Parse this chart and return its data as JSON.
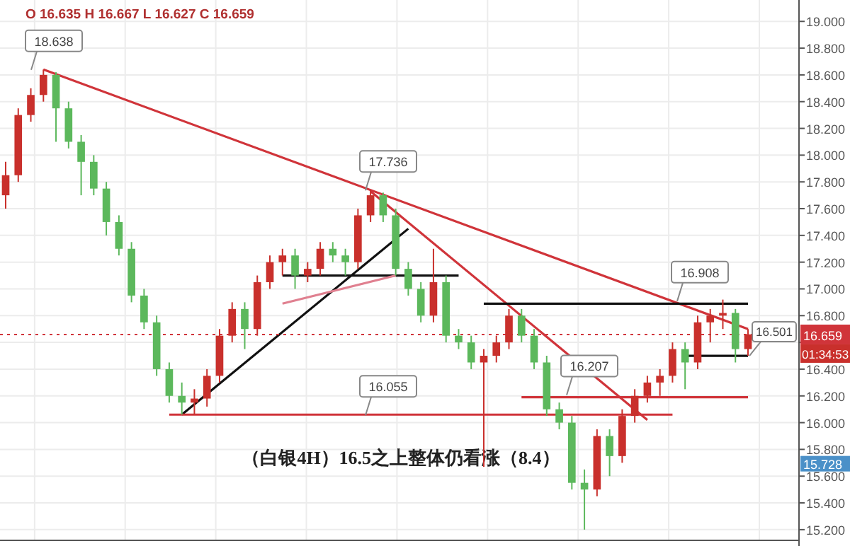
{
  "chart_data": {
    "type": "candlestick",
    "categories": [
      null,
      null,
      null,
      null,
      null,
      null,
      null,
      null,
      null,
      null,
      null,
      null,
      null,
      null,
      null,
      null,
      null,
      null,
      null,
      null,
      null,
      null,
      null,
      null,
      null,
      null,
      null,
      null,
      null,
      null,
      null,
      null,
      null,
      null,
      null,
      null,
      null,
      null,
      null,
      null,
      null,
      null,
      null,
      null,
      null,
      null,
      null,
      null,
      null,
      null,
      null,
      null,
      null,
      null,
      null,
      null,
      null,
      null,
      null,
      null
    ],
    "ohlc": [
      [
        17.7,
        17.95,
        17.6,
        17.85
      ],
      [
        17.85,
        18.35,
        17.8,
        18.3
      ],
      [
        18.3,
        18.5,
        18.25,
        18.45
      ],
      [
        18.45,
        18.64,
        18.4,
        18.6
      ],
      [
        18.6,
        18.62,
        18.1,
        18.35
      ],
      [
        18.35,
        18.4,
        18.05,
        18.1
      ],
      [
        18.1,
        18.15,
        17.7,
        17.95
      ],
      [
        17.95,
        18.0,
        17.7,
        17.75
      ],
      [
        17.75,
        17.8,
        17.4,
        17.5
      ],
      [
        17.5,
        17.55,
        17.25,
        17.3
      ],
      [
        17.3,
        17.35,
        16.9,
        16.95
      ],
      [
        16.95,
        17.0,
        16.7,
        16.75
      ],
      [
        16.75,
        16.8,
        16.35,
        16.4
      ],
      [
        16.4,
        16.45,
        16.15,
        16.2
      ],
      [
        16.2,
        16.3,
        16.06,
        16.15
      ],
      [
        16.15,
        16.25,
        16.06,
        16.18
      ],
      [
        16.18,
        16.4,
        16.12,
        16.35
      ],
      [
        16.35,
        16.7,
        16.3,
        16.65
      ],
      [
        16.65,
        16.9,
        16.6,
        16.85
      ],
      [
        16.85,
        16.9,
        16.55,
        16.7
      ],
      [
        16.7,
        17.1,
        16.65,
        17.05
      ],
      [
        17.05,
        17.25,
        17.0,
        17.2
      ],
      [
        17.2,
        17.3,
        17.1,
        17.25
      ],
      [
        17.25,
        17.3,
        17.0,
        17.1
      ],
      [
        17.1,
        17.2,
        17.05,
        17.15
      ],
      [
        17.15,
        17.35,
        17.1,
        17.3
      ],
      [
        17.3,
        17.35,
        17.2,
        17.25
      ],
      [
        17.25,
        17.3,
        17.1,
        17.2
      ],
      [
        17.2,
        17.6,
        17.15,
        17.55
      ],
      [
        17.55,
        17.74,
        17.5,
        17.7
      ],
      [
        17.7,
        17.72,
        17.5,
        17.55
      ],
      [
        17.55,
        17.6,
        17.1,
        17.15
      ],
      [
        17.15,
        17.2,
        16.95,
        17.0
      ],
      [
        17.0,
        17.05,
        16.75,
        16.8
      ],
      [
        16.8,
        17.3,
        16.75,
        17.05
      ],
      [
        17.05,
        17.1,
        16.6,
        16.65
      ],
      [
        16.65,
        16.7,
        16.55,
        16.6
      ],
      [
        16.6,
        16.65,
        16.4,
        16.45
      ],
      [
        16.45,
        16.55,
        15.67,
        16.5
      ],
      [
        16.5,
        16.65,
        16.45,
        16.6
      ],
      [
        16.6,
        16.85,
        16.55,
        16.8
      ],
      [
        16.8,
        16.85,
        16.6,
        16.65
      ],
      [
        16.65,
        16.7,
        16.4,
        16.45
      ],
      [
        16.45,
        16.5,
        16.05,
        16.1
      ],
      [
        16.1,
        16.15,
        15.95,
        16.0
      ],
      [
        16.0,
        16.05,
        15.5,
        15.55
      ],
      [
        15.55,
        15.65,
        15.2,
        15.5
      ],
      [
        15.5,
        15.95,
        15.45,
        15.9
      ],
      [
        15.9,
        15.95,
        15.6,
        15.75
      ],
      [
        15.75,
        16.1,
        15.7,
        16.05
      ],
      [
        16.05,
        16.25,
        16.0,
        16.2
      ],
      [
        16.2,
        16.35,
        16.15,
        16.3
      ],
      [
        16.3,
        16.4,
        16.2,
        16.35
      ],
      [
        16.35,
        16.6,
        16.3,
        16.55
      ],
      [
        16.55,
        16.6,
        16.25,
        16.45
      ],
      [
        16.45,
        16.8,
        16.4,
        16.75
      ],
      [
        16.75,
        16.85,
        16.6,
        16.8
      ],
      [
        16.8,
        16.92,
        16.7,
        16.82
      ],
      [
        16.82,
        16.85,
        16.45,
        16.55
      ],
      [
        16.55,
        16.7,
        16.5,
        16.66
      ]
    ],
    "colors": [
      "#c9302c",
      "#c9302c",
      "#c9302c",
      "#c9302c",
      "#5cb85c",
      "#5cb85c",
      "#5cb85c",
      "#5cb85c",
      "#5cb85c",
      "#5cb85c",
      "#5cb85c",
      "#5cb85c",
      "#5cb85c",
      "#5cb85c",
      "#5cb85c",
      "#c9302c",
      "#c9302c",
      "#c9302c",
      "#c9302c",
      "#5cb85c",
      "#c9302c",
      "#c9302c",
      "#c9302c",
      "#5cb85c",
      "#c9302c",
      "#c9302c",
      "#5cb85c",
      "#5cb85c",
      "#c9302c",
      "#c9302c",
      "#5cb85c",
      "#5cb85c",
      "#5cb85c",
      "#5cb85c",
      "#c9302c",
      "#5cb85c",
      "#5cb85c",
      "#5cb85c",
      "#c9302c",
      "#c9302c",
      "#c9302c",
      "#5cb85c",
      "#5cb85c",
      "#5cb85c",
      "#5cb85c",
      "#5cb85c",
      "#5cb85c",
      "#c9302c",
      "#5cb85c",
      "#c9302c",
      "#c9302c",
      "#c9302c",
      "#c9302c",
      "#c9302c",
      "#5cb85c",
      "#c9302c",
      "#c9302c",
      "#c9302c",
      "#5cb85c",
      "#c9302c"
    ],
    "series": [
      {
        "type": "line",
        "color": "#d0343a",
        "values": [
          null,
          null,
          null,
          18.64,
          null,
          null,
          null,
          null,
          null,
          null,
          null,
          null,
          null,
          null,
          null,
          null,
          null,
          null,
          null,
          null,
          null,
          null,
          null,
          null,
          null,
          null,
          null,
          null,
          null,
          null,
          null,
          null,
          null,
          null,
          null,
          null,
          null,
          null,
          null,
          null,
          null,
          null,
          null,
          null,
          null,
          null,
          null,
          null,
          null,
          null,
          null,
          null,
          null,
          null,
          null,
          null,
          null,
          null,
          null,
          16.7
        ]
      },
      {
        "type": "line",
        "color": "#d0343a",
        "values": [
          null,
          null,
          null,
          null,
          null,
          null,
          null,
          null,
          null,
          null,
          null,
          null,
          null,
          null,
          null,
          null,
          null,
          null,
          null,
          null,
          null,
          null,
          null,
          null,
          null,
          null,
          null,
          null,
          null,
          17.73,
          null,
          null,
          null,
          null,
          null,
          null,
          null,
          null,
          null,
          null,
          null,
          null,
          null,
          null,
          null,
          null,
          null,
          null,
          null,
          null,
          null,
          16.02,
          null,
          null,
          null,
          null,
          null,
          null,
          null,
          null
        ]
      },
      {
        "type": "line",
        "color": "#111111",
        "values": [
          null,
          null,
          null,
          null,
          null,
          null,
          null,
          null,
          null,
          null,
          null,
          null,
          null,
          null,
          16.06,
          null,
          null,
          null,
          null,
          null,
          null,
          null,
          null,
          null,
          null,
          null,
          null,
          null,
          null,
          null,
          null,
          null,
          17.45,
          null,
          null,
          null,
          null,
          null,
          null,
          null,
          null,
          null,
          null,
          null,
          null,
          null,
          null,
          null,
          null,
          null,
          null,
          null,
          null,
          null,
          null,
          null,
          null,
          null,
          null,
          null
        ]
      },
      {
        "type": "line",
        "color": "#111111",
        "values": [
          null,
          null,
          null,
          null,
          null,
          null,
          null,
          null,
          null,
          null,
          null,
          null,
          null,
          null,
          null,
          null,
          null,
          null,
          null,
          null,
          null,
          null,
          17.1,
          null,
          null,
          null,
          null,
          null,
          null,
          null,
          null,
          null,
          null,
          null,
          null,
          null,
          17.1,
          null,
          null,
          null,
          null,
          null,
          null,
          null,
          null,
          null,
          null,
          null,
          null,
          null,
          null,
          null,
          null,
          null,
          null,
          null,
          null,
          null,
          null,
          null
        ]
      },
      {
        "type": "line",
        "color": "#e08090",
        "values": [
          null,
          null,
          null,
          null,
          null,
          null,
          null,
          null,
          null,
          null,
          null,
          null,
          null,
          null,
          null,
          null,
          null,
          null,
          null,
          null,
          null,
          null,
          16.89,
          null,
          null,
          null,
          null,
          null,
          null,
          null,
          null,
          17.1,
          null,
          null,
          null,
          null,
          null,
          null,
          null,
          null,
          null,
          null,
          null,
          null,
          null,
          null,
          null,
          null,
          null,
          null,
          null,
          null,
          null,
          null,
          null,
          null,
          null,
          null,
          null,
          null
        ]
      },
      {
        "type": "line",
        "color": "#d0343a",
        "values": [
          null,
          null,
          null,
          null,
          null,
          null,
          null,
          null,
          null,
          null,
          null,
          null,
          null,
          16.06,
          null,
          null,
          null,
          null,
          null,
          null,
          null,
          null,
          null,
          null,
          null,
          null,
          null,
          null,
          null,
          null,
          null,
          null,
          null,
          null,
          null,
          null,
          null,
          null,
          null,
          null,
          null,
          null,
          null,
          null,
          null,
          null,
          null,
          null,
          null,
          null,
          null,
          null,
          null,
          16.06,
          null,
          null,
          null,
          null,
          null,
          null
        ]
      },
      {
        "type": "line",
        "color": "#d0343a",
        "values": [
          null,
          null,
          null,
          null,
          null,
          null,
          null,
          null,
          null,
          null,
          null,
          null,
          null,
          null,
          null,
          null,
          null,
          null,
          null,
          null,
          null,
          null,
          null,
          null,
          null,
          null,
          null,
          null,
          null,
          null,
          null,
          null,
          null,
          null,
          null,
          null,
          null,
          null,
          null,
          null,
          null,
          16.19,
          null,
          null,
          null,
          null,
          null,
          null,
          null,
          null,
          null,
          null,
          null,
          null,
          null,
          null,
          null,
          null,
          null,
          16.19
        ]
      },
      {
        "type": "line",
        "color": "#111111",
        "values": [
          null,
          null,
          null,
          null,
          null,
          null,
          null,
          null,
          null,
          null,
          null,
          null,
          null,
          null,
          null,
          null,
          null,
          null,
          null,
          null,
          null,
          null,
          null,
          null,
          null,
          null,
          null,
          null,
          null,
          null,
          null,
          null,
          null,
          null,
          null,
          null,
          null,
          null,
          16.89,
          null,
          null,
          null,
          null,
          null,
          null,
          null,
          null,
          null,
          null,
          null,
          null,
          null,
          null,
          null,
          null,
          null,
          null,
          null,
          null,
          16.89
        ]
      },
      {
        "type": "line",
        "color": "#111111",
        "values": [
          null,
          null,
          null,
          null,
          null,
          null,
          null,
          null,
          null,
          null,
          null,
          null,
          null,
          null,
          null,
          null,
          null,
          null,
          null,
          null,
          null,
          null,
          null,
          null,
          null,
          null,
          null,
          null,
          null,
          null,
          null,
          null,
          null,
          null,
          null,
          null,
          null,
          null,
          null,
          null,
          null,
          null,
          null,
          null,
          null,
          null,
          null,
          null,
          null,
          null,
          null,
          null,
          null,
          null,
          16.5,
          null,
          null,
          null,
          null,
          16.5
        ]
      }
    ],
    "ylim": [
      15.12,
      19.16
    ],
    "yticks": [
      {
        "value": 15.2,
        "label": "15.200"
      },
      {
        "value": 15.4,
        "label": "15.400"
      },
      {
        "value": 15.6,
        "label": "15.600"
      },
      {
        "value": 15.8,
        "label": "15.800"
      },
      {
        "value": 16.0,
        "label": "16.000"
      },
      {
        "value": 16.2,
        "label": "16.200"
      },
      {
        "value": 16.4,
        "label": "16.400"
      },
      {
        "value": 16.6,
        "label": null
      },
      {
        "value": 16.8,
        "label": "16.800"
      },
      {
        "value": 17.0,
        "label": "17.000"
      },
      {
        "value": 17.2,
        "label": "17.200"
      },
      {
        "value": 17.4,
        "label": "17.400"
      },
      {
        "value": 17.6,
        "label": "17.600"
      },
      {
        "value": 17.8,
        "label": "17.800"
      },
      {
        "value": 18.0,
        "label": "18.000"
      },
      {
        "value": 18.2,
        "label": "18.200"
      },
      {
        "value": 18.4,
        "label": "18.400"
      },
      {
        "value": 18.6,
        "label": "18.600"
      },
      {
        "value": 18.8,
        "label": "18.800"
      },
      {
        "value": 19.0,
        "label": "19.000"
      }
    ],
    "tick_labels": "y",
    "grid": true,
    "ref_lines": [
      {
        "axis": "y",
        "value": 16.659,
        "label": "16.659",
        "color": "#d0343a",
        "line_style": "dotted"
      }
    ],
    "annotations": [
      "O 16.635 H 16.667 L 16.627 C 16.659",
      "（白银4H）16.5之上整体仍看涨（8.4）",
      "01:34:53",
      "16.501",
      "15.728",
      {
        "text": "18.638",
        "y": 18.638
      },
      {
        "text": "17.736",
        "y": 17.736
      },
      {
        "text": "16.055",
        "y": 16.055
      },
      {
        "text": "16.207",
        "y": 16.207
      },
      {
        "text": "16.908",
        "y": 16.908
      }
    ]
  }
}
